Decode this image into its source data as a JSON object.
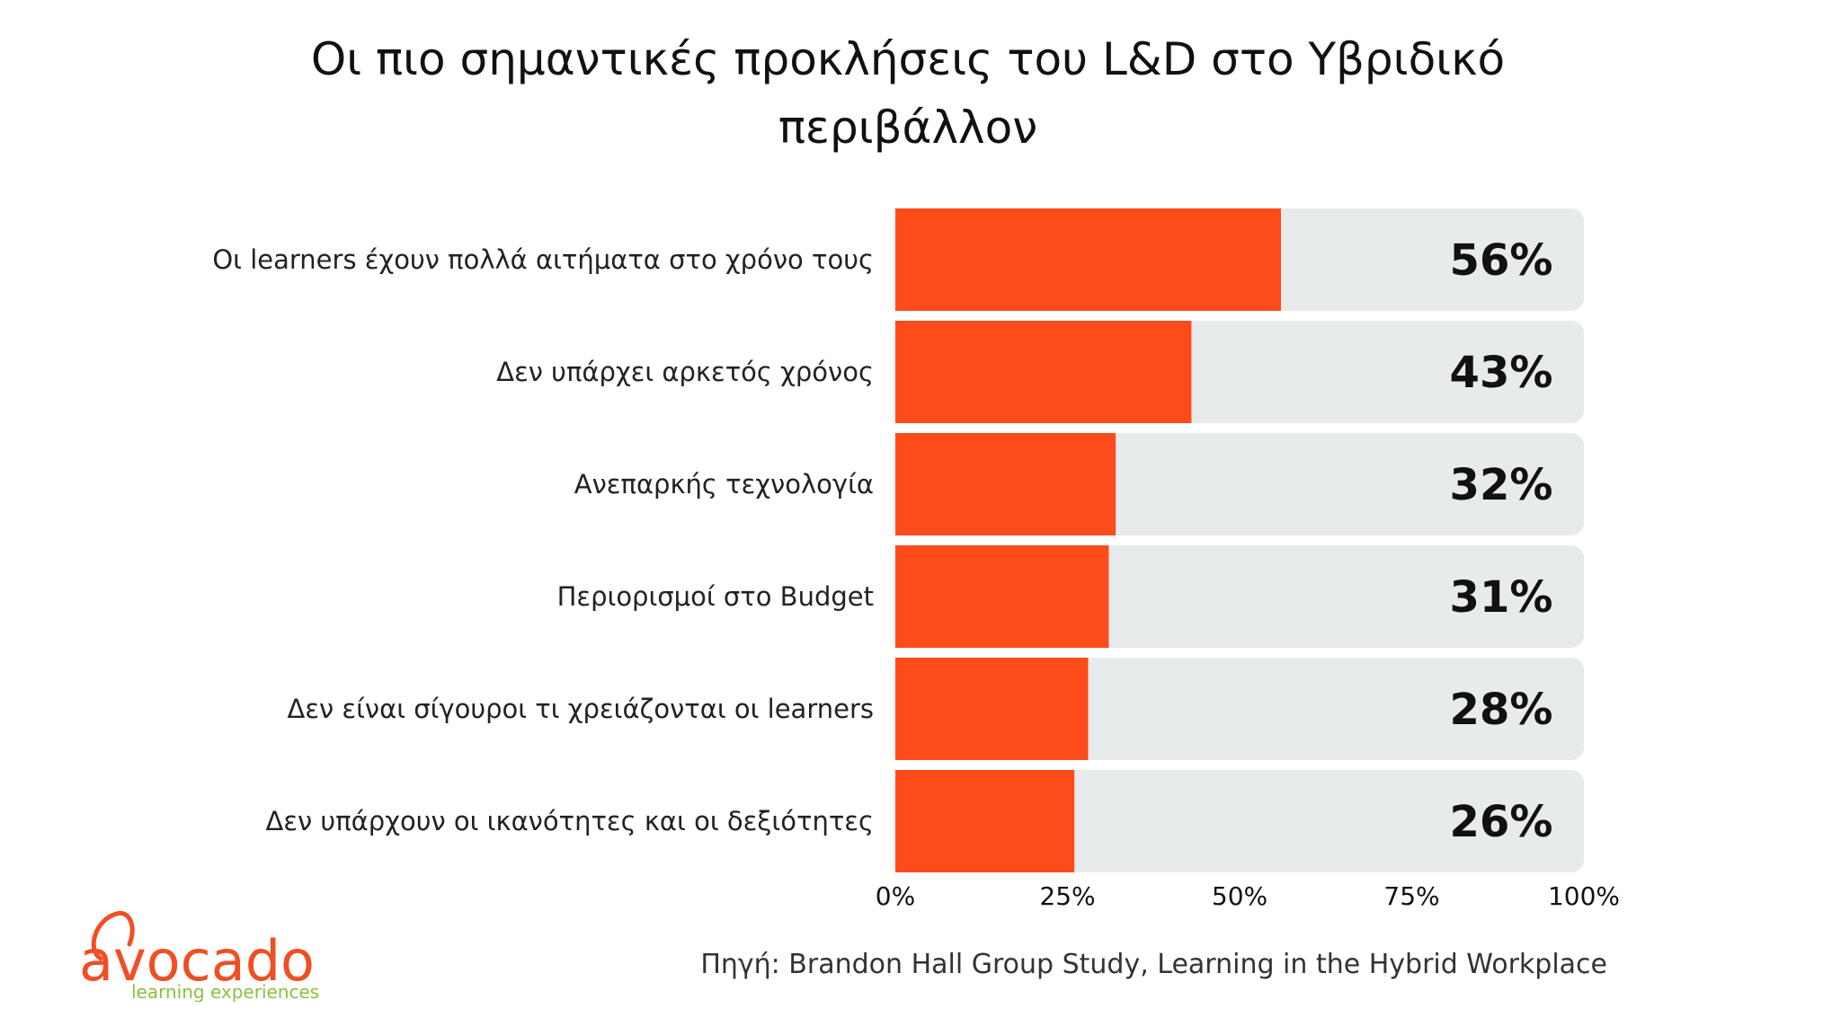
{
  "colors": {
    "bar": "#fd4b1a",
    "track": "#e8ebeb",
    "brand_orange": "#f04e23",
    "brand_green": "#8cbf3f"
  },
  "chart_data": {
    "type": "bar",
    "orientation": "horizontal",
    "title": "Οι πιο σημαντικές προκλήσεις του L&D στο Υβριδικό περιβάλλον",
    "categories": [
      "Οι learners  έχουν πολλά αιτήματα στο χρόνο τους",
      "Δεν υπάρχει αρκετός χρόνος",
      "Ανεπαρκής τεχνολογία",
      "Περιορισμοί στο Budget",
      "Δεν είναι σίγουροι τι χρειάζονται οι learners",
      "Δεν υπάρχουν οι ικανότητες και οι δεξιότητες "
    ],
    "values": [
      56,
      43,
      32,
      31,
      28,
      26
    ],
    "value_labels": [
      "56%",
      "43%",
      "32%",
      "31%",
      "28%",
      "26%"
    ],
    "xlim": [
      0,
      100
    ],
    "x_ticks": [
      0,
      25,
      50,
      75,
      100
    ],
    "x_tick_labels": [
      "0%",
      "25%",
      "50%",
      "75%",
      "100%"
    ],
    "grid": false,
    "legend": "none"
  },
  "source": "Πηγή: Brandon Hall Group Study, Learning in the Hybrid Workplace",
  "logo": {
    "name": "avocado",
    "tagline": "learning experiences"
  }
}
